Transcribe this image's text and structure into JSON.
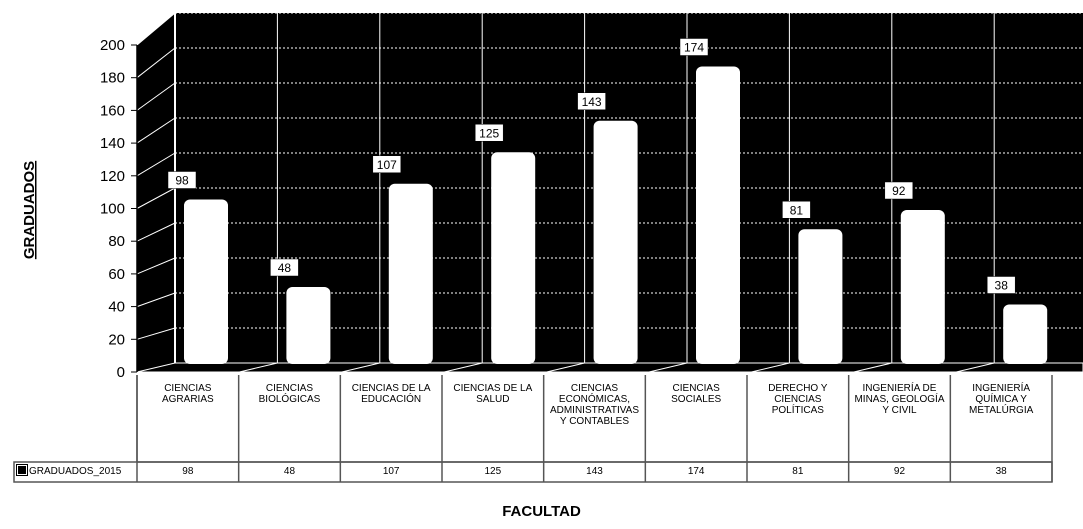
{
  "chart_data": {
    "type": "bar",
    "xlabel": "FACULTAD",
    "ylabel": "GRADUADOS",
    "ylim": [
      0,
      200
    ],
    "yticks": [
      0,
      20,
      40,
      60,
      80,
      100,
      120,
      140,
      160,
      180,
      200
    ],
    "categories": [
      "CIENCIAS AGRARIAS",
      "CIENCIAS BIOLÓGICAS",
      "CIENCIAS DE LA EDUCACIÓN",
      "CIENCIAS DE LA SALUD",
      "CIENCIAS ECONÓMICAS, ADMINISTRATIVAS Y CONTABLES",
      "CIENCIAS SOCIALES",
      "DERECHO Y CIENCIAS POLÍTICAS",
      "INGENIERÍA DE MINAS, GEOLOGÍA Y CIVIL",
      "INGENIERÍA QUÍMICA Y METALÚRGIA"
    ],
    "series": [
      {
        "name": "GRADUADOS_2015",
        "values": [
          98,
          48,
          107,
          125,
          143,
          174,
          81,
          92,
          38
        ]
      }
    ],
    "colors": {
      "background": "#000000",
      "bar": "#ffffff",
      "grid": "#ffffff"
    },
    "grid": true,
    "data_table": true
  }
}
